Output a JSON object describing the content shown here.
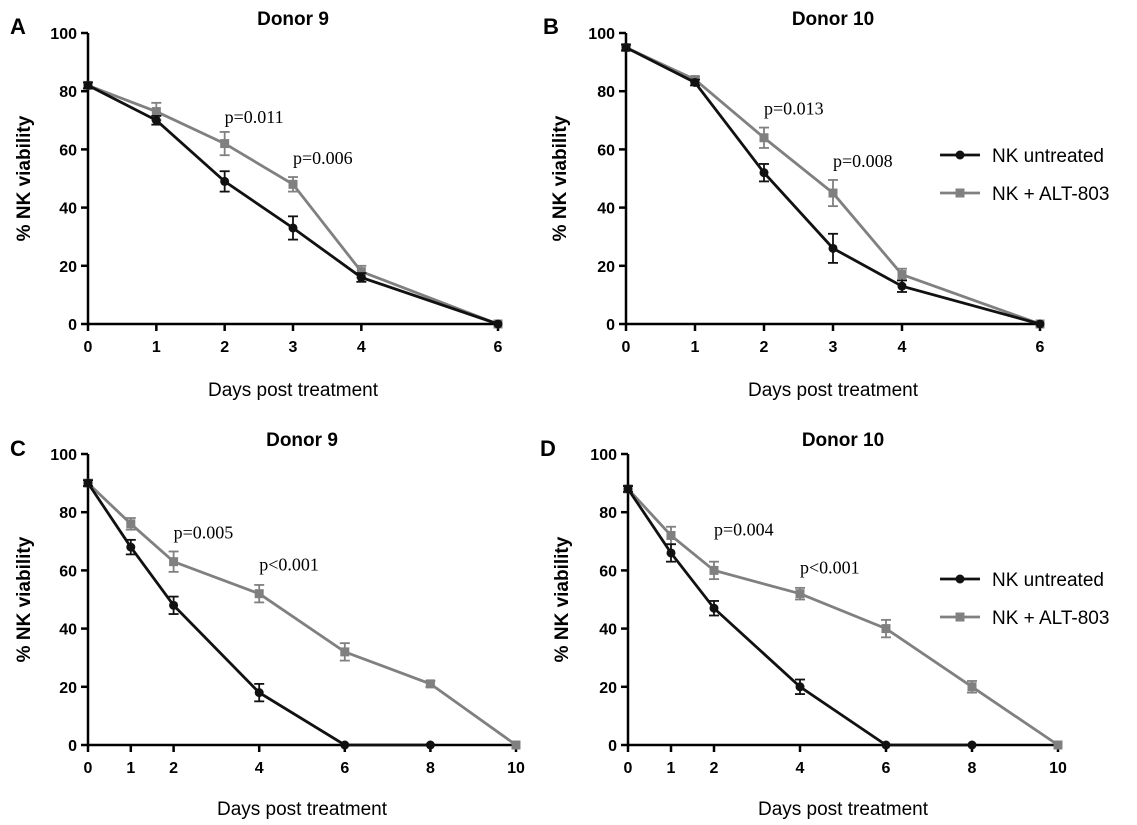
{
  "colors": {
    "untreated": "#111111",
    "treated": "#808080"
  },
  "legends": [
    {
      "entries": [
        {
          "label": "NK untreated",
          "color": "#111111",
          "marker": "circle"
        },
        {
          "label": "NK + ALT-803",
          "color": "#808080",
          "marker": "square"
        }
      ]
    },
    {
      "entries": [
        {
          "label": "NK untreated",
          "color": "#111111",
          "marker": "circle"
        },
        {
          "label": "NK + ALT-803",
          "color": "#808080",
          "marker": "square"
        }
      ]
    }
  ],
  "chart_data": [
    {
      "type": "line",
      "panel": "A",
      "title": "Donor 9",
      "xlabel": "Days post treatment",
      "ylabel": "% NK viability",
      "xlim": [
        0,
        6
      ],
      "ylim": [
        0,
        100
      ],
      "xticks": [
        0,
        1,
        2,
        3,
        4,
        6
      ],
      "yticks": [
        0,
        20,
        40,
        60,
        80,
        100
      ],
      "series": [
        {
          "name": "NK untreated",
          "marker": "circle",
          "x": [
            0,
            1,
            2,
            3,
            4,
            6
          ],
          "y": [
            82,
            70,
            49,
            33,
            16,
            0
          ],
          "err": [
            1,
            1.5,
            3.5,
            4,
            1.5,
            0
          ]
        },
        {
          "name": "NK + ALT-803",
          "marker": "square",
          "x": [
            0,
            1,
            2,
            3,
            4,
            6
          ],
          "y": [
            82,
            73,
            62,
            48,
            18,
            0
          ],
          "err": [
            1,
            3,
            4,
            2.5,
            2,
            0
          ]
        }
      ],
      "annotations": [
        {
          "text": "p=0.011",
          "x": 2,
          "y": 69
        },
        {
          "text": "p=0.006",
          "x": 3,
          "y": 55
        }
      ]
    },
    {
      "type": "line",
      "panel": "B",
      "title": "Donor 10",
      "xlabel": "Days post treatment",
      "ylabel": "% NK viability",
      "xlim": [
        0,
        6
      ],
      "ylim": [
        0,
        100
      ],
      "xticks": [
        0,
        1,
        2,
        3,
        4,
        6
      ],
      "yticks": [
        0,
        20,
        40,
        60,
        80,
        100
      ],
      "series": [
        {
          "name": "NK untreated",
          "marker": "circle",
          "x": [
            0,
            1,
            2,
            3,
            4,
            6
          ],
          "y": [
            95,
            83,
            52,
            26,
            13,
            0
          ],
          "err": [
            1,
            1,
            3,
            5,
            2,
            0
          ]
        },
        {
          "name": "NK + ALT-803",
          "marker": "square",
          "x": [
            0,
            1,
            2,
            3,
            4,
            6
          ],
          "y": [
            95,
            84,
            64,
            45,
            17,
            0
          ],
          "err": [
            1,
            1,
            3.5,
            4.5,
            2,
            0
          ]
        }
      ],
      "annotations": [
        {
          "text": "p=0.013",
          "x": 2,
          "y": 72
        },
        {
          "text": "p=0.008",
          "x": 3,
          "y": 54
        }
      ]
    },
    {
      "type": "line",
      "panel": "C",
      "title": "Donor 9",
      "xlabel": "Days post treatment",
      "ylabel": "% NK viability",
      "xlim": [
        0,
        10
      ],
      "ylim": [
        0,
        100
      ],
      "xticks": [
        0,
        1,
        2,
        4,
        6,
        8,
        10
      ],
      "yticks": [
        0,
        20,
        40,
        60,
        80,
        100
      ],
      "series": [
        {
          "name": "NK untreated",
          "marker": "circle",
          "x": [
            0,
            1,
            2,
            4,
            6,
            8
          ],
          "y": [
            90,
            68,
            48,
            18,
            0,
            0
          ],
          "err": [
            1,
            2.5,
            3,
            3,
            0,
            0
          ]
        },
        {
          "name": "NK + ALT-803",
          "marker": "square",
          "x": [
            0,
            1,
            2,
            4,
            6,
            8,
            10
          ],
          "y": [
            90,
            76,
            63,
            52,
            32,
            21,
            0
          ],
          "err": [
            1,
            2,
            3.5,
            3,
            3,
            1,
            0
          ]
        }
      ],
      "annotations": [
        {
          "text": "p=0.005",
          "x": 2,
          "y": 71
        },
        {
          "text": "p<0.001",
          "x": 4,
          "y": 60
        }
      ]
    },
    {
      "type": "line",
      "panel": "D",
      "title": "Donor 10",
      "xlabel": "Days post treatment",
      "ylabel": "% NK viability",
      "xlim": [
        0,
        10
      ],
      "ylim": [
        0,
        100
      ],
      "xticks": [
        0,
        1,
        2,
        4,
        6,
        8,
        10
      ],
      "yticks": [
        0,
        20,
        40,
        60,
        80,
        100
      ],
      "series": [
        {
          "name": "NK untreated",
          "marker": "circle",
          "x": [
            0,
            1,
            2,
            4,
            6,
            8
          ],
          "y": [
            88,
            66,
            47,
            20,
            0,
            0
          ],
          "err": [
            1,
            3,
            2.5,
            2.5,
            0,
            0
          ]
        },
        {
          "name": "NK + ALT-803",
          "marker": "square",
          "x": [
            0,
            1,
            2,
            4,
            6,
            8,
            10
          ],
          "y": [
            88,
            72,
            60,
            52,
            40,
            20,
            0
          ],
          "err": [
            1,
            3,
            3,
            2,
            3,
            2,
            0
          ]
        }
      ],
      "annotations": [
        {
          "text": "p=0.004",
          "x": 2,
          "y": 72
        },
        {
          "text": "p<0.001",
          "x": 4,
          "y": 59
        }
      ]
    }
  ]
}
